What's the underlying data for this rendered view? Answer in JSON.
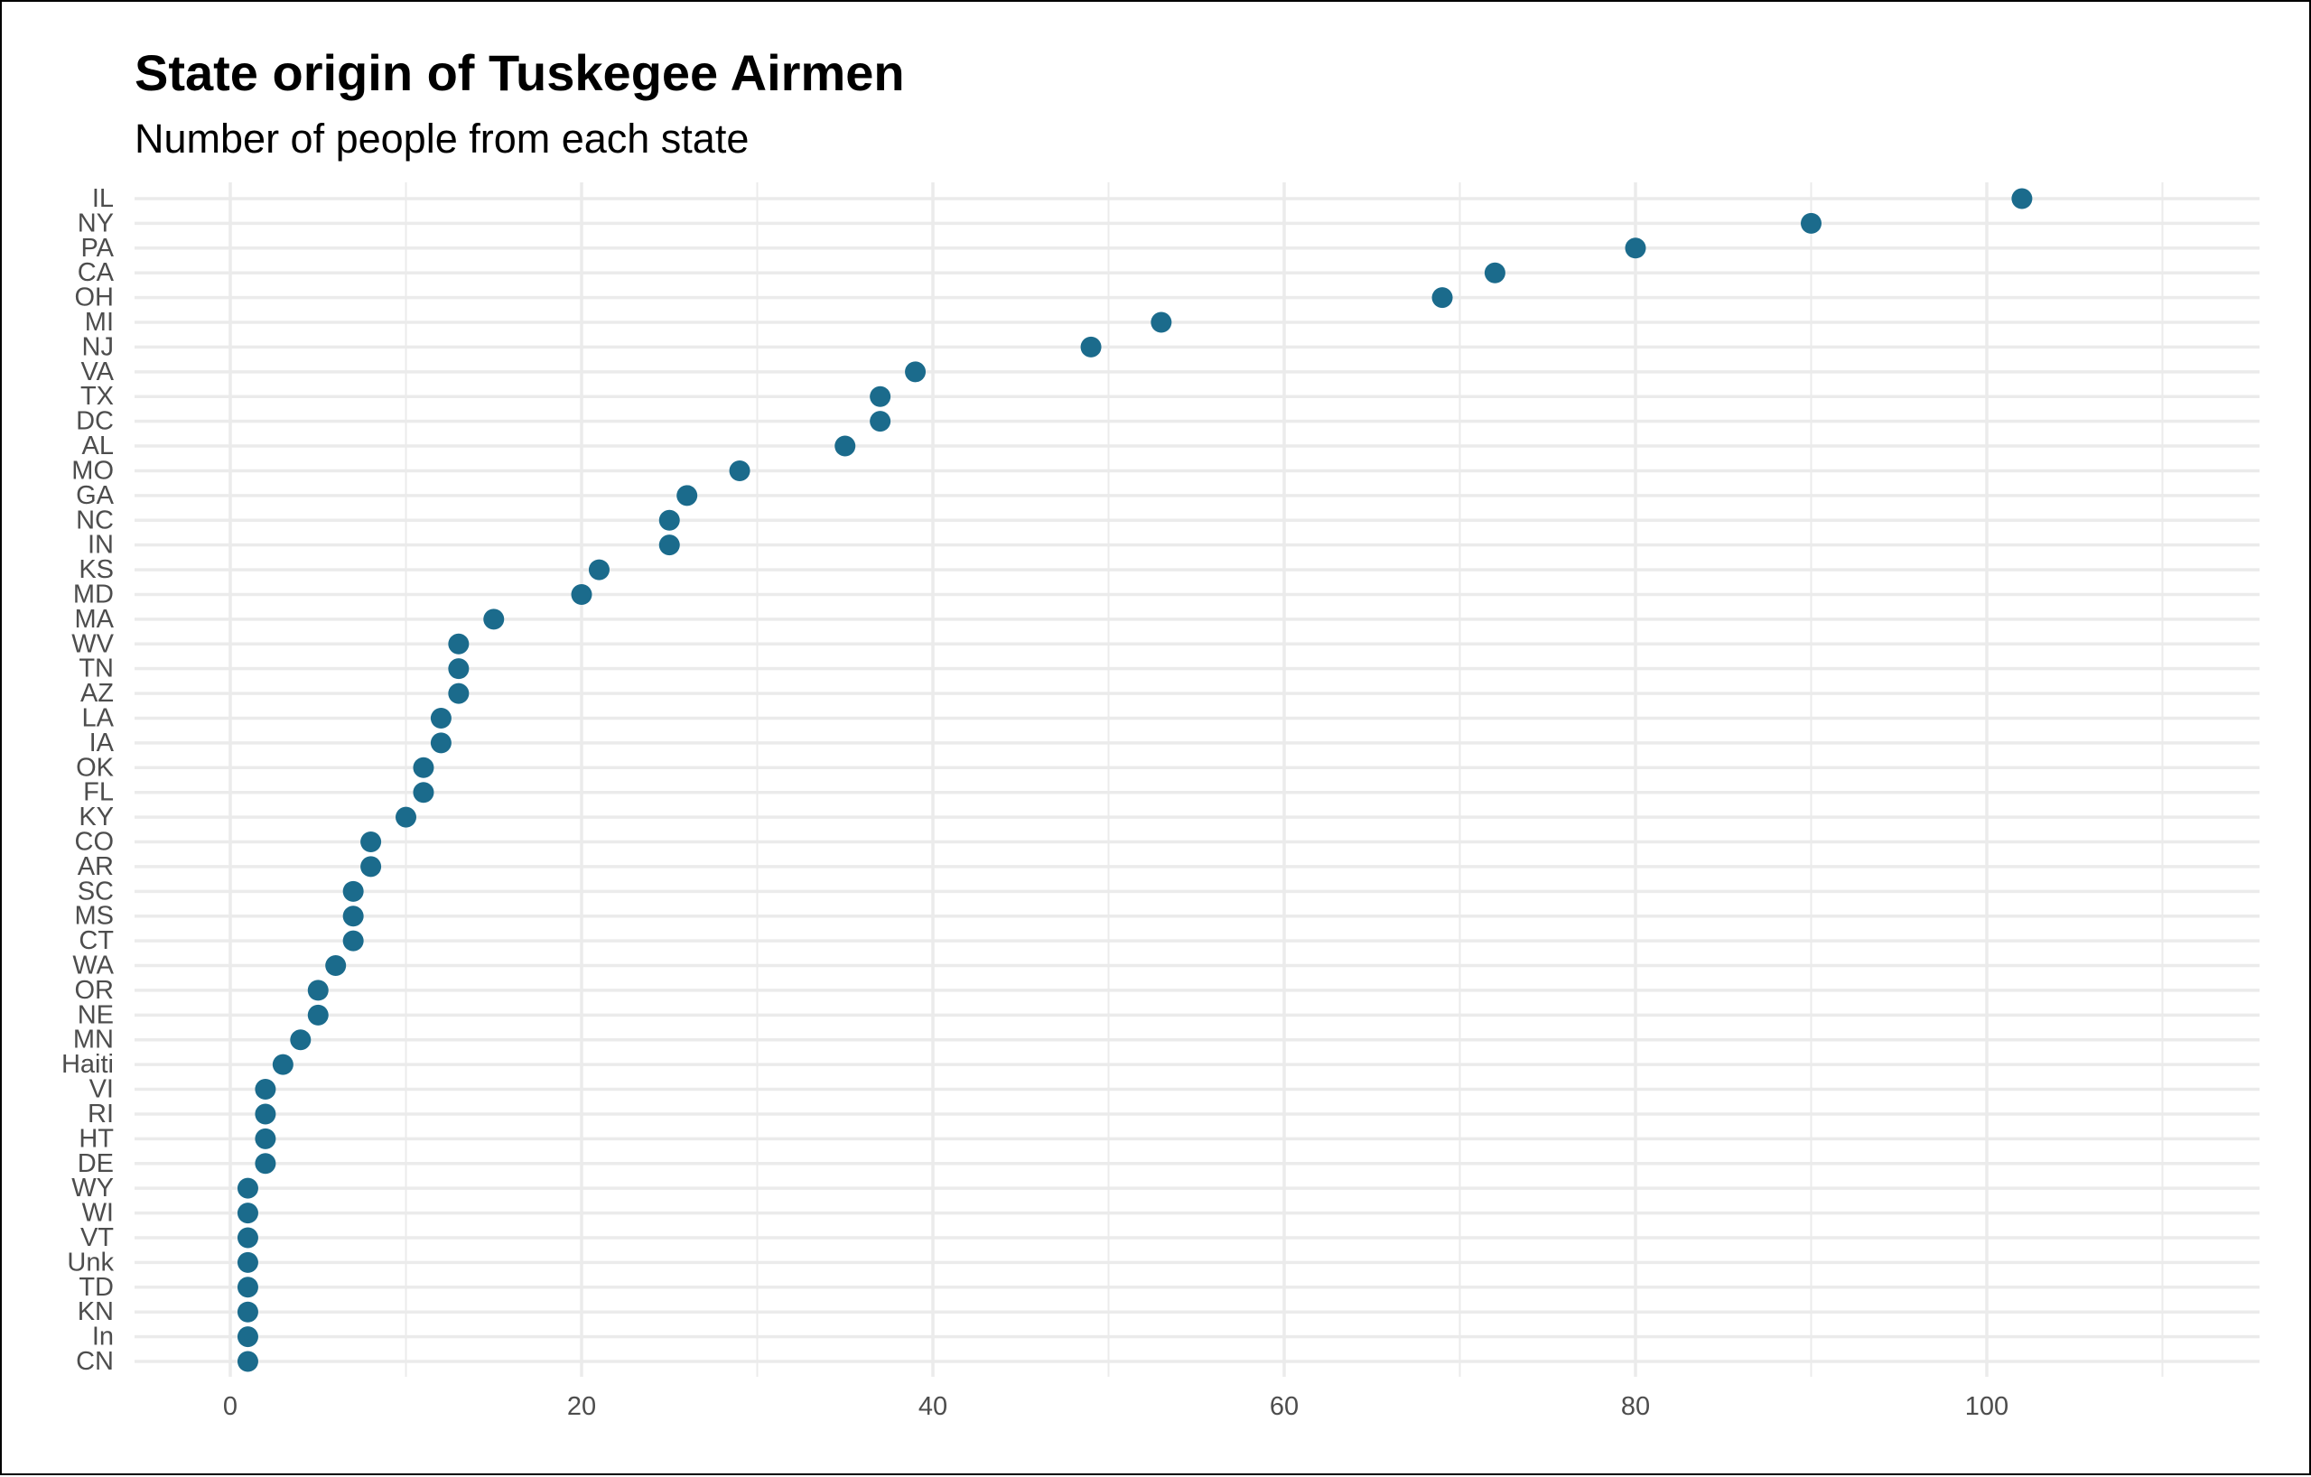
{
  "chart_data": {
    "type": "scatter",
    "title": "State origin of Tuskegee Airmen",
    "subtitle": "Number of people from each state",
    "xlabel": "",
    "ylabel": "",
    "xlim": [
      -8,
      110
    ],
    "x_ticks": [
      0,
      20,
      40,
      60,
      80,
      100
    ],
    "grid": true,
    "point_color": "#1b6b8c",
    "categories": [
      "IL",
      "NY",
      "PA",
      "CA",
      "OH",
      "MI",
      "NJ",
      "VA",
      "TX",
      "DC",
      "AL",
      "MO",
      "GA",
      "NC",
      "IN",
      "KS",
      "MD",
      "MA",
      "WV",
      "TN",
      "AZ",
      "LA",
      "IA",
      "OK",
      "FL",
      "KY",
      "CO",
      "AR",
      "SC",
      "MS",
      "CT",
      "WA",
      "OR",
      "NE",
      "MN",
      "Haiti",
      "VI",
      "RI",
      "HT",
      "DE",
      "WY",
      "WI",
      "VT",
      "Unk",
      "TD",
      "KN",
      "In",
      "CN"
    ],
    "values": [
      102,
      90,
      80,
      72,
      69,
      53,
      49,
      39,
      37,
      37,
      35,
      29,
      26,
      25,
      25,
      21,
      20,
      15,
      13,
      13,
      13,
      12,
      12,
      11,
      11,
      10,
      8,
      8,
      7,
      7,
      7,
      6,
      5,
      5,
      4,
      3,
      2,
      2,
      2,
      2,
      1,
      1,
      1,
      1,
      1,
      1,
      1,
      1
    ]
  }
}
